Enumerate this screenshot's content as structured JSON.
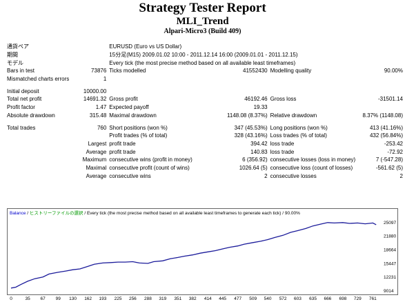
{
  "header": {
    "title": "Strategy Tester Report",
    "expert": "MLI_Trend",
    "server": "Alpari-Micro3 (Build 409)"
  },
  "info": {
    "symbol_label": "通貨ペア",
    "symbol_value": "EURUSD (Euro vs US Dollar)",
    "period_label": "期間",
    "period_value": "15分足(M15) 2009.01.02 10:00 - 2011.12.14 16:00 (2009.01.01 - 2011.12.15)",
    "model_label": "モデル",
    "model_value": "Every tick (the most precise method based on all available least timeframes)",
    "bars_label": "Bars in test",
    "bars_value": "73876",
    "ticks_label": "Ticks modelled",
    "ticks_value": "41552430",
    "quality_label": "Modelling quality",
    "quality_value": "90.00%",
    "mismatch_label": "Mismatched charts errors",
    "mismatch_value": "1"
  },
  "stats": {
    "deposit_label": "Initial deposit",
    "deposit_value": "10000.00",
    "net_label": "Total net profit",
    "net_value": "14691.32",
    "gross_profit_label": "Gross profit",
    "gross_profit_value": "46192.46",
    "gross_loss_label": "Gross loss",
    "gross_loss_value": "-31501.14",
    "pf_label": "Profit factor",
    "pf_value": "1.47",
    "payoff_label": "Expected payoff",
    "payoff_value": "19.33",
    "abs_dd_label": "Absolute drawdown",
    "abs_dd_value": "315.48",
    "max_dd_label": "Maximal drawdown",
    "max_dd_value": "1148.08 (8.37%)",
    "rel_dd_label": "Relative drawdown",
    "rel_dd_value": "8.37% (1148.08)",
    "trades_label": "Total trades",
    "trades_value": "760",
    "short_label": "Short positions (won %)",
    "short_value": "347 (45.53%)",
    "long_label": "Long positions (won %)",
    "long_value": "413 (41.16%)",
    "pt_label": "Profit trades (% of total)",
    "pt_value": "328 (43.16%)",
    "lt_label": "Loss trades (% of total)",
    "lt_value": "432 (56.84%)",
    "largest_label": "Largest",
    "largest_profit_label": "profit trade",
    "largest_profit_value": "394.42",
    "largest_loss_label": "loss trade",
    "largest_loss_value": "-253.42",
    "average_label": "Average",
    "average_profit_label": "profit trade",
    "average_profit_value": "140.83",
    "average_loss_label": "loss trade",
    "average_loss_value": "-72.92",
    "maximum_label": "Maximum",
    "max_wins_label": "consecutive wins (profit in money)",
    "max_wins_value": "6 (356.92)",
    "max_losses_label": "consecutive losses (loss in money)",
    "max_losses_value": "7 (-547.28)",
    "maximal_label": "Maximal",
    "mx_profit_label": "consecutive profit (count of wins)",
    "mx_profit_value": "1026.64 (5)",
    "mx_loss_label": "consecutive loss (count of losses)",
    "mx_loss_value": "-561.62 (5)",
    "avg2_label": "Average",
    "avg_wins_label": "consecutive wins",
    "avg_wins_value": "2",
    "avg_losses_label": "consecutive losses",
    "avg_losses_value": "2"
  },
  "chart_legend": {
    "balance": "Balance",
    "sep1": " / ",
    "history": "ヒストリーファイルの選択",
    "sep2": " / ",
    "model": "Every tick (the most precise method based on all available least timeframes to generate each tick)",
    "sep3": " / ",
    "quality": "90.00%"
  },
  "colors": {
    "balance_line": "#1a1a9a",
    "legend_balance": "#0000cc",
    "legend_history": "#009900",
    "border": "#666666"
  },
  "chart_data": {
    "type": "line",
    "title": "",
    "xlabel": "",
    "ylabel": "",
    "x_ticks": [
      0,
      35,
      67,
      99,
      130,
      162,
      193,
      225,
      256,
      288,
      319,
      351,
      382,
      414,
      445,
      477,
      509,
      540,
      572,
      603,
      635,
      666,
      698,
      729,
      761
    ],
    "y_ticks": [
      9014,
      12231,
      15447,
      18664,
      21880,
      25097
    ],
    "xlim": [
      0,
      775
    ],
    "ylim": [
      9014,
      26200
    ],
    "series": [
      {
        "name": "",
        "x": [
          0,
          10,
          20,
          35,
          50,
          67,
          80,
          99,
          115,
          130,
          145,
          162,
          175,
          193,
          210,
          225,
          240,
          256,
          270,
          288,
          300,
          319,
          335,
          351,
          365,
          382,
          398,
          414,
          430,
          445,
          460,
          477,
          490,
          509,
          525,
          540,
          555,
          572,
          588,
          603,
          620,
          635,
          650,
          666,
          680,
          698,
          712,
          729,
          745,
          761,
          768
        ],
        "y": [
          9700,
          9900,
          10500,
          11300,
          11900,
          12300,
          13000,
          13400,
          13700,
          14000,
          14200,
          14800,
          15300,
          15600,
          15700,
          15800,
          15800,
          15900,
          15600,
          15500,
          15900,
          16100,
          16600,
          16900,
          17200,
          17500,
          17900,
          18200,
          18500,
          18900,
          19300,
          19600,
          20000,
          20400,
          20700,
          21100,
          21600,
          22100,
          22800,
          23200,
          23700,
          24300,
          24700,
          25100,
          25000,
          25100,
          24900,
          25000,
          24800,
          25000,
          24600
        ]
      }
    ]
  }
}
